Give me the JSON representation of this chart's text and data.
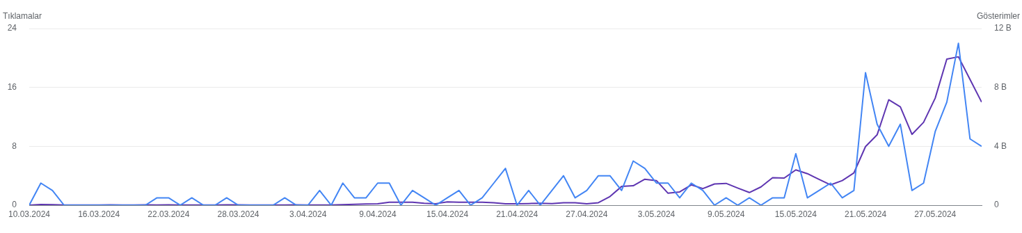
{
  "chart_data": {
    "type": "line",
    "ylabel": "Tıklamalar",
    "y2label": "Gösterimler",
    "x": [
      "2024-03-10",
      "2024-03-11",
      "2024-03-12",
      "2024-03-13",
      "2024-03-14",
      "2024-03-15",
      "2024-03-16",
      "2024-03-17",
      "2024-03-18",
      "2024-03-19",
      "2024-03-20",
      "2024-03-21",
      "2024-03-22",
      "2024-03-23",
      "2024-03-24",
      "2024-03-25",
      "2024-03-26",
      "2024-03-27",
      "2024-03-28",
      "2024-03-29",
      "2024-03-30",
      "2024-03-31",
      "2024-04-01",
      "2024-04-02",
      "2024-04-03",
      "2024-04-04",
      "2024-04-05",
      "2024-04-06",
      "2024-04-07",
      "2024-04-08",
      "2024-04-09",
      "2024-04-10",
      "2024-04-11",
      "2024-04-12",
      "2024-04-13",
      "2024-04-14",
      "2024-04-15",
      "2024-04-16",
      "2024-04-17",
      "2024-04-18",
      "2024-04-19",
      "2024-04-20",
      "2024-04-21",
      "2024-04-22",
      "2024-04-23",
      "2024-04-24",
      "2024-04-25",
      "2024-04-26",
      "2024-04-27",
      "2024-04-28",
      "2024-04-29",
      "2024-04-30",
      "2024-05-01",
      "2024-05-02",
      "2024-05-03",
      "2024-05-04",
      "2024-05-05",
      "2024-05-06",
      "2024-05-07",
      "2024-05-08",
      "2024-05-09",
      "2024-05-10",
      "2024-05-11",
      "2024-05-12",
      "2024-05-13",
      "2024-05-14",
      "2024-05-15",
      "2024-05-16",
      "2024-05-17",
      "2024-05-18",
      "2024-05-19",
      "2024-05-20",
      "2024-05-21",
      "2024-05-22",
      "2024-05-23",
      "2024-05-24",
      "2024-05-25",
      "2024-05-26",
      "2024-05-27",
      "2024-05-28",
      "2024-05-29",
      "2024-05-30",
      "2024-05-31"
    ],
    "series": [
      {
        "color": "#4285f4",
        "values": [
          0,
          3,
          2,
          0,
          0,
          0,
          0,
          0,
          0,
          0,
          0,
          1,
          1,
          0,
          1,
          0,
          0,
          1,
          0,
          0,
          0,
          0,
          1,
          0,
          0,
          2,
          0,
          3,
          1,
          1,
          3,
          3,
          0,
          2,
          1,
          0,
          1,
          2,
          0,
          1,
          3,
          5,
          0,
          2,
          0,
          2,
          4,
          1,
          2,
          4,
          4,
          2,
          6,
          5,
          3,
          3,
          1,
          3,
          2,
          0,
          1,
          0,
          1,
          0,
          1,
          1,
          7,
          1,
          2,
          3,
          1,
          2,
          18,
          11,
          8,
          11,
          2,
          3,
          10,
          14,
          22,
          9,
          8
        ]
      },
      {
        "color": "#5e35b1",
        "axis": "y2",
        "values": [
          0,
          0.05,
          0.03,
          0.01,
          0.01,
          0.01,
          0.01,
          0.02,
          0.01,
          0.01,
          0.02,
          0.01,
          0.02,
          0.01,
          0.01,
          0.01,
          0.01,
          0.02,
          0.02,
          0.01,
          0.01,
          0.01,
          0.01,
          0.02,
          0.01,
          0.01,
          0.01,
          0.03,
          0.06,
          0.08,
          0.1,
          0.2,
          0.2,
          0.2,
          0.13,
          0.1,
          0.22,
          0.2,
          0.2,
          0.2,
          0.16,
          0.1,
          0.1,
          0.11,
          0.13,
          0.11,
          0.16,
          0.17,
          0.1,
          0.17,
          0.59,
          1.27,
          1.32,
          1.76,
          1.67,
          0.81,
          0.9,
          1.38,
          1.13,
          1.44,
          1.48,
          1.16,
          0.86,
          1.24,
          1.87,
          1.84,
          2.4,
          2.14,
          1.75,
          1.38,
          1.67,
          2.19,
          3.98,
          4.78,
          7.16,
          6.68,
          4.81,
          5.63,
          7.27,
          9.92,
          10.08,
          8.54,
          7.0
        ]
      }
    ],
    "xlim": [
      "2024-03-10",
      "2024-05-31"
    ],
    "xticks": [
      {
        "value": "2024-03-10",
        "label": "10.03.2024"
      },
      {
        "value": "2024-03-16",
        "label": "16.03.2024"
      },
      {
        "value": "2024-03-22",
        "label": "22.03.2024"
      },
      {
        "value": "2024-03-28",
        "label": "28.03.2024"
      },
      {
        "value": "2024-04-03",
        "label": "3.04.2024"
      },
      {
        "value": "2024-04-09",
        "label": "9.04.2024"
      },
      {
        "value": "2024-04-15",
        "label": "15.04.2024"
      },
      {
        "value": "2024-04-21",
        "label": "21.04.2024"
      },
      {
        "value": "2024-04-27",
        "label": "27.04.2024"
      },
      {
        "value": "2024-05-03",
        "label": "3.05.2024"
      },
      {
        "value": "2024-05-09",
        "label": "9.05.2024"
      },
      {
        "value": "2024-05-15",
        "label": "15.05.2024"
      },
      {
        "value": "2024-05-21",
        "label": "21.05.2024"
      },
      {
        "value": "2024-05-27",
        "label": "27.05.2024"
      }
    ],
    "ylim": [
      0,
      24
    ],
    "yticks": [
      0,
      8,
      16,
      24
    ],
    "y2lim": [
      0,
      12
    ],
    "y2ticks": [
      {
        "value": 0,
        "label": "0"
      },
      {
        "value": 4,
        "label": "4 B"
      },
      {
        "value": 8,
        "label": "8 B"
      },
      {
        "value": 12,
        "label": "12 B"
      }
    ],
    "grid": "y",
    "marker": "none",
    "line_style": "solid",
    "legend": false
  }
}
